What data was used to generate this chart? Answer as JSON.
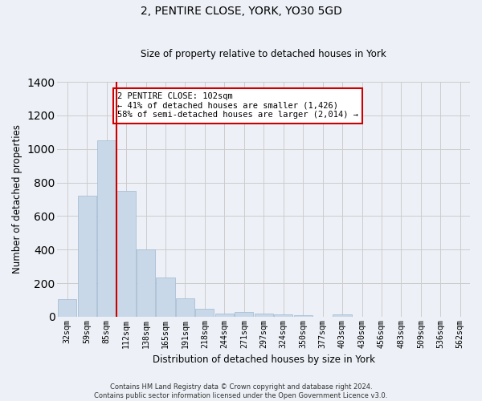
{
  "title1": "2, PENTIRE CLOSE, YORK, YO30 5GD",
  "title2": "Size of property relative to detached houses in York",
  "xlabel": "Distribution of detached houses by size in York",
  "ylabel": "Number of detached properties",
  "categories": [
    "32sqm",
    "59sqm",
    "85sqm",
    "112sqm",
    "138sqm",
    "165sqm",
    "191sqm",
    "218sqm",
    "244sqm",
    "271sqm",
    "297sqm",
    "324sqm",
    "350sqm",
    "377sqm",
    "403sqm",
    "430sqm",
    "456sqm",
    "483sqm",
    "509sqm",
    "536sqm",
    "562sqm"
  ],
  "values": [
    105,
    720,
    1050,
    750,
    400,
    235,
    110,
    45,
    20,
    28,
    20,
    15,
    8,
    0,
    12,
    0,
    0,
    0,
    0,
    0,
    0
  ],
  "bar_color": "#c8d8e8",
  "bar_edge_color": "#a0b8d0",
  "grid_color": "#cccccc",
  "bg_color": "#edf1f7",
  "annotation_text": "2 PENTIRE CLOSE: 102sqm\n← 41% of detached houses are smaller (1,426)\n58% of semi-detached houses are larger (2,014) →",
  "annotation_box_color": "#ffffff",
  "annotation_box_edge": "#cc0000",
  "vline_color": "#cc0000",
  "vline_x_index": 2,
  "ylim": [
    0,
    1400
  ],
  "yticks": [
    0,
    200,
    400,
    600,
    800,
    1000,
    1200,
    1400
  ],
  "footer": "Contains HM Land Registry data © Crown copyright and database right 2024.\nContains public sector information licensed under the Open Government Licence v3.0."
}
